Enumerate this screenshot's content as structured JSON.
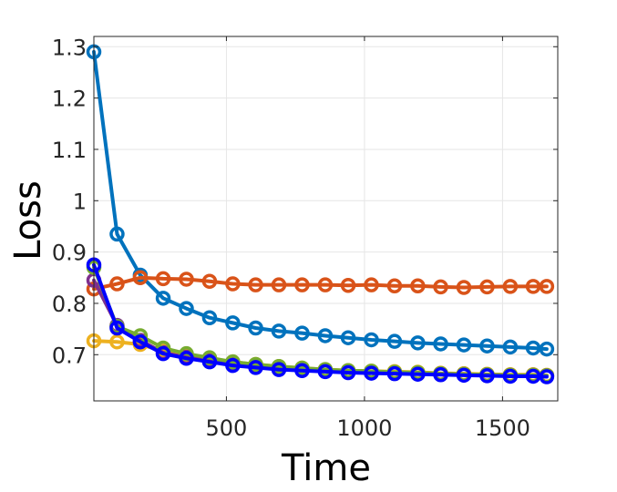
{
  "chart_data": {
    "type": "line",
    "xlabel": "Time",
    "ylabel": "Loss",
    "xlim": [
      20,
      1700
    ],
    "ylim": [
      0.61,
      1.32
    ],
    "xticks": [
      500,
      1000,
      1500
    ],
    "yticks": [
      0.7,
      0.8,
      0.9,
      1,
      1.1,
      1.2,
      1.3
    ],
    "xtick_labels": [
      "500",
      "1000",
      "1500"
    ],
    "ytick_labels": [
      "0.7",
      "0.8",
      "0.9",
      "1",
      "1.1",
      "1.2",
      "1.3"
    ],
    "grid": true,
    "marker": "circle",
    "x": [
      20,
      104,
      188,
      271,
      355,
      439,
      523,
      606,
      690,
      774,
      858,
      941,
      1025,
      1109,
      1193,
      1276,
      1360,
      1444,
      1528,
      1611,
      1660
    ],
    "series": [
      {
        "color": "#0072BD",
        "values": [
          1.29,
          0.935,
          0.855,
          0.81,
          0.79,
          0.772,
          0.762,
          0.752,
          0.746,
          0.742,
          0.737,
          0.733,
          0.729,
          0.726,
          0.723,
          0.721,
          0.719,
          0.717,
          0.715,
          0.713,
          0.711
        ]
      },
      {
        "color": "#D95319",
        "values": [
          0.828,
          0.838,
          0.85,
          0.848,
          0.847,
          0.843,
          0.838,
          0.836,
          0.836,
          0.836,
          0.836,
          0.835,
          0.836,
          0.834,
          0.834,
          0.832,
          0.831,
          0.832,
          0.833,
          0.833,
          0.833
        ]
      },
      {
        "color": "#EDB120",
        "values": [
          0.727,
          0.725,
          0.72,
          0.707,
          0.7,
          0.692,
          0.686,
          0.681,
          0.677,
          0.674,
          0.671,
          0.669,
          0.668,
          0.667,
          0.666,
          0.664,
          0.663,
          0.662,
          0.661,
          0.661,
          0.66
        ]
      },
      {
        "color": "#7E2F8E",
        "values": [
          0.845,
          0.757,
          0.728,
          0.704,
          0.695,
          0.688,
          0.682,
          0.677,
          0.673,
          0.671,
          0.669,
          0.667,
          0.666,
          0.665,
          0.664,
          0.663,
          0.662,
          0.661,
          0.66,
          0.66,
          0.659
        ]
      },
      {
        "color": "#77AC30",
        "values": [
          0.87,
          0.755,
          0.737,
          0.713,
          0.702,
          0.694,
          0.686,
          0.681,
          0.677,
          0.674,
          0.671,
          0.669,
          0.668,
          0.666,
          0.665,
          0.663,
          0.662,
          0.661,
          0.66,
          0.66,
          0.659
        ]
      },
      {
        "color": "#0000FF",
        "values": [
          0.875,
          0.752,
          0.725,
          0.702,
          0.693,
          0.686,
          0.679,
          0.675,
          0.671,
          0.669,
          0.667,
          0.665,
          0.664,
          0.663,
          0.662,
          0.661,
          0.66,
          0.659,
          0.658,
          0.658,
          0.657
        ]
      }
    ]
  }
}
